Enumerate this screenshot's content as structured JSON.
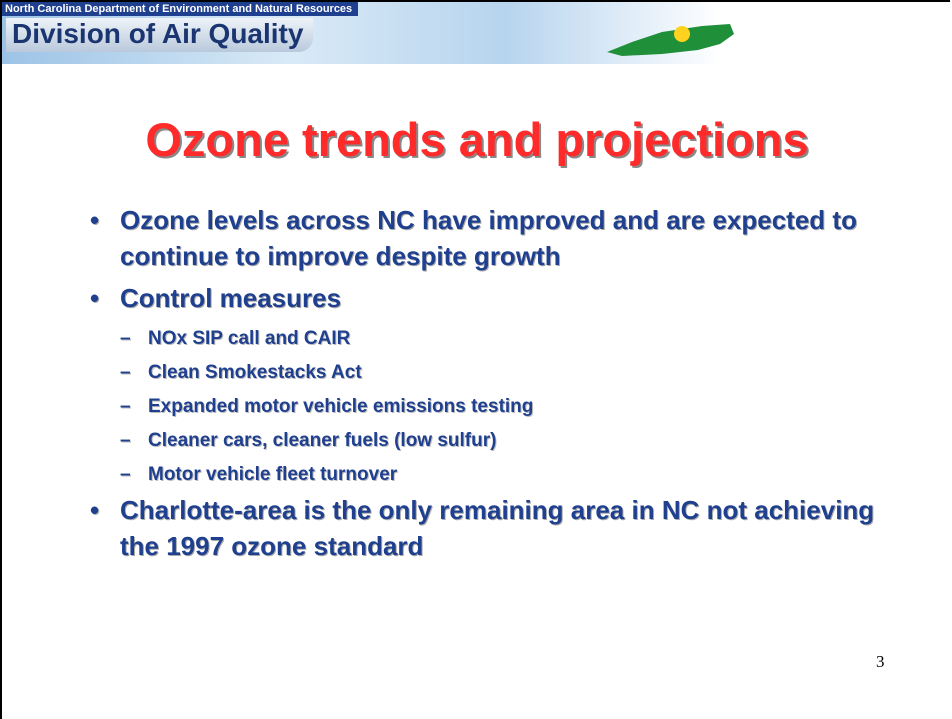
{
  "header": {
    "department": "North Carolina Department of Environment and Natural Resources",
    "division": "Division of Air Quality"
  },
  "title": "Ozone trends and projections",
  "bullets": [
    {
      "text": "Ozone levels across NC have improved and are expected to continue to improve despite growth",
      "sub": []
    },
    {
      "text": "Control measures",
      "sub": [
        "NOx SIP call and CAIR",
        "Clean Smokestacks Act",
        "Expanded motor vehicle emissions testing",
        "Cleaner cars, cleaner fuels (low sulfur)",
        "Motor vehicle fleet turnover"
      ]
    },
    {
      "text": "Charlotte-area is the only remaining area in NC not achieving the 1997 ozone standard",
      "sub": []
    }
  ],
  "page_number": "3"
}
